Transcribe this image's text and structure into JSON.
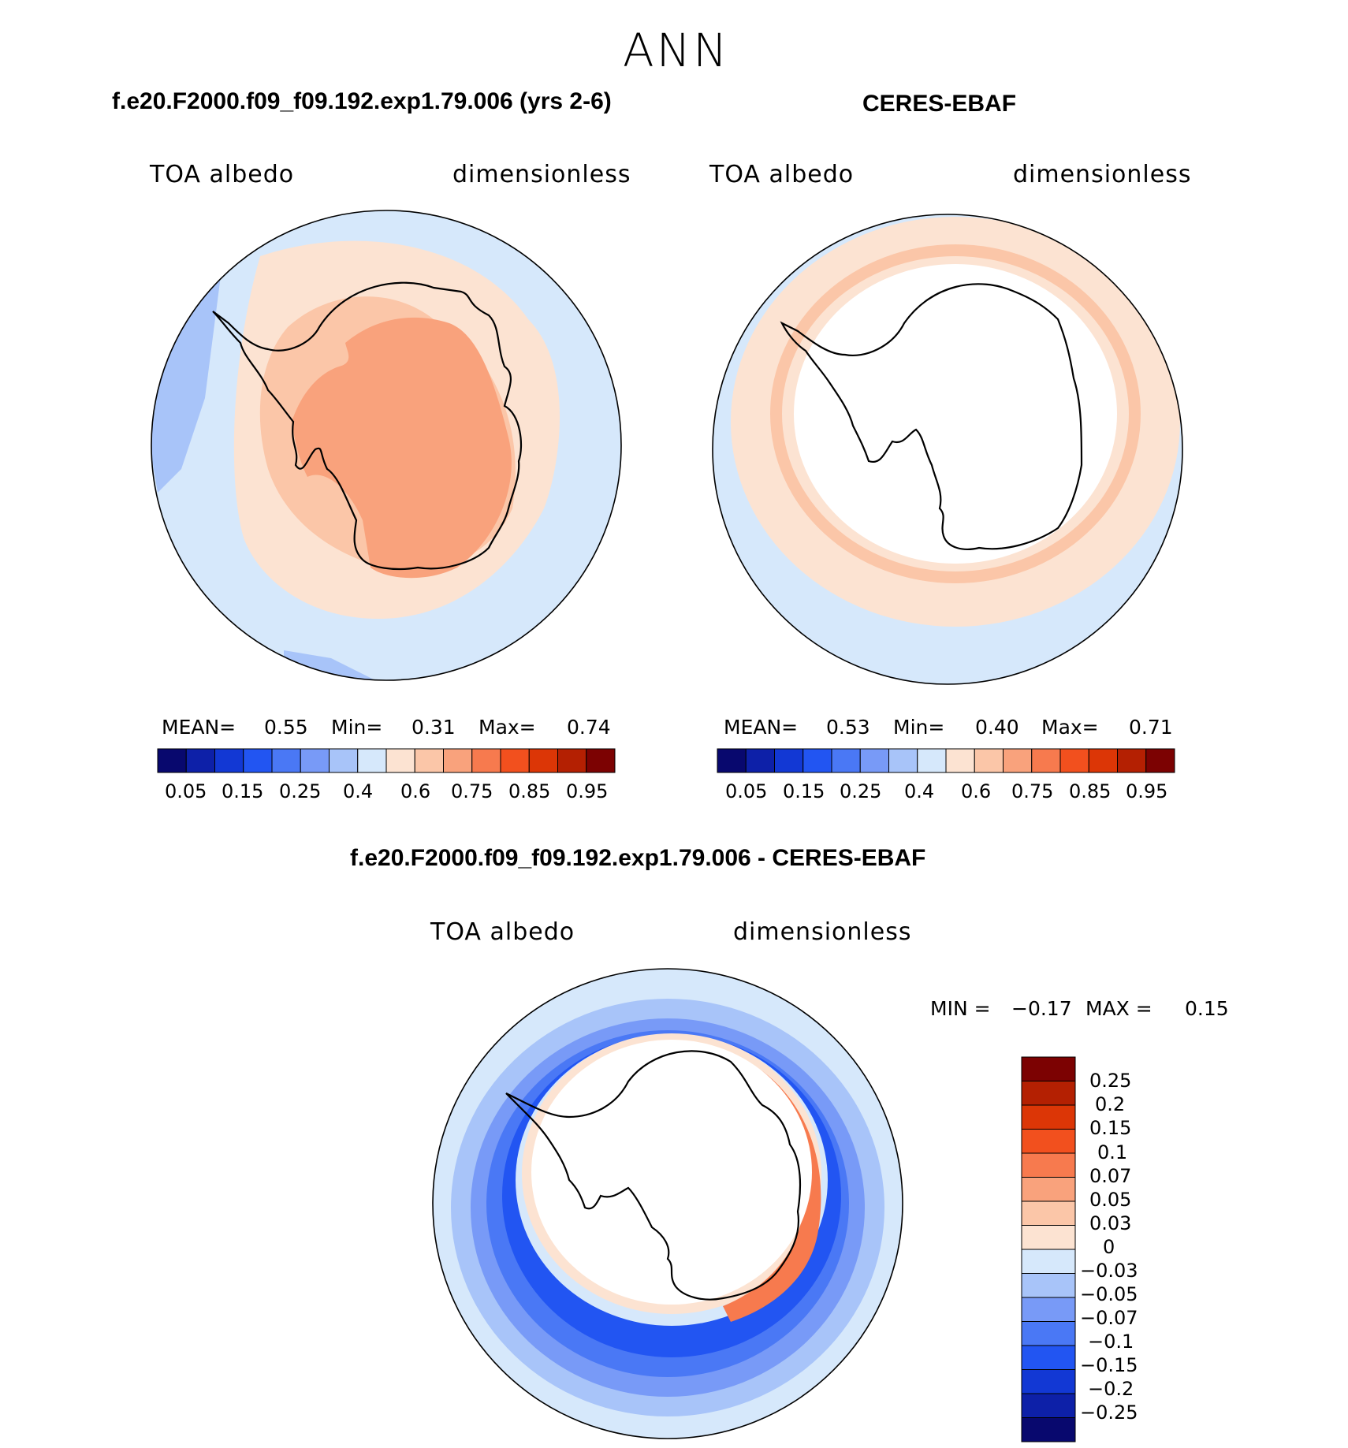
{
  "season": "ANN",
  "panels": [
    {
      "title": "f.e20.F2000.f09_f09.192.exp1.79.006 (yrs 2-6)",
      "left_label": "TOA albedo",
      "right_label": "dimensionless",
      "stats": {
        "mean_label": "MEAN=",
        "mean": "0.55",
        "min_label": "Min=",
        "min": "0.31",
        "max_label": "Max=",
        "max": "0.74"
      }
    },
    {
      "title": "CERES-EBAF",
      "left_label": "TOA albedo",
      "right_label": "dimensionless",
      "stats": {
        "mean_label": "MEAN=",
        "mean": "0.53",
        "min_label": "Min=",
        "min": "0.40",
        "max_label": "Max=",
        "max": "0.71"
      }
    }
  ],
  "horizontal_colorbar": {
    "colors": [
      "#08086e",
      "#0d20a8",
      "#1238d4",
      "#2255f2",
      "#4a78f5",
      "#789af7",
      "#a8c4f9",
      "#d6e8fb",
      "#fce3d2",
      "#fbc6a8",
      "#f9a27c",
      "#f77a4e",
      "#f2501e",
      "#dc3606",
      "#b42002",
      "#7c0202"
    ],
    "tick_labels": [
      "0.05",
      "0.15",
      "0.25",
      "0.4",
      "0.6",
      "0.75",
      "0.85",
      "0.95"
    ]
  },
  "diff_panel": {
    "title": "f.e20.F2000.f09_f09.192.exp1.79.006 - CERES-EBAF",
    "left_label": "TOA albedo",
    "right_label": "dimensionless",
    "min_label": "MIN =",
    "min": "−0.17",
    "max_label": "MAX =",
    "max": "0.15"
  },
  "vertical_colorbar": {
    "colors": [
      "#7c0202",
      "#b42002",
      "#dc3606",
      "#f2501e",
      "#f77a4e",
      "#f9a27c",
      "#fbc6a8",
      "#fce3d2",
      "#d6e8fb",
      "#a8c4f9",
      "#789af7",
      "#4a78f5",
      "#2255f2",
      "#1238d4",
      "#0d20a8",
      "#08086e"
    ],
    "tick_labels": [
      "0.25",
      "0.2",
      "0.15",
      "0.1",
      "0.07",
      "0.05",
      "0.03",
      "0",
      "−0.03",
      "−0.05",
      "−0.07",
      "−0.1",
      "−0.15",
      "−0.2",
      "−0.25"
    ]
  },
  "chart_data": [
    {
      "type": "heatmap",
      "title": "f.e20.F2000.f09_f09.192.exp1.79.006 (yrs 2-6)",
      "variable": "TOA albedo",
      "units": "dimensionless",
      "projection": "south polar stereographic",
      "mean": 0.55,
      "min": 0.31,
      "max": 0.74,
      "contour_levels": [
        0.05,
        0.1,
        0.15,
        0.2,
        0.25,
        0.3,
        0.35,
        0.4,
        0.5,
        0.6,
        0.7,
        0.75,
        0.8,
        0.85,
        0.9,
        0.95
      ]
    },
    {
      "type": "heatmap",
      "title": "CERES-EBAF",
      "variable": "TOA albedo",
      "units": "dimensionless",
      "projection": "south polar stereographic",
      "mean": 0.53,
      "min": 0.4,
      "max": 0.71,
      "contour_levels": [
        0.05,
        0.1,
        0.15,
        0.2,
        0.25,
        0.3,
        0.35,
        0.4,
        0.5,
        0.6,
        0.7,
        0.75,
        0.8,
        0.85,
        0.9,
        0.95
      ]
    },
    {
      "type": "heatmap",
      "title": "f.e20.F2000.f09_f09.192.exp1.79.006 - CERES-EBAF",
      "variable": "TOA albedo",
      "units": "dimensionless",
      "projection": "south polar stereographic",
      "min": -0.17,
      "max": 0.15,
      "contour_levels": [
        -0.25,
        -0.2,
        -0.15,
        -0.1,
        -0.07,
        -0.05,
        -0.03,
        0,
        0.03,
        0.05,
        0.07,
        0.1,
        0.15,
        0.2,
        0.25
      ]
    }
  ]
}
